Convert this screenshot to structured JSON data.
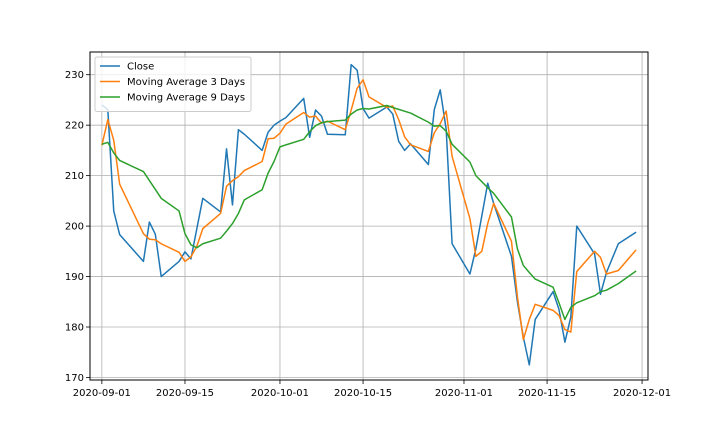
{
  "chart_data": {
    "type": "line",
    "title": "",
    "xlabel": "",
    "ylabel": "",
    "x_type": "date",
    "xlim": [
      "2020-08-30",
      "2020-12-02"
    ],
    "ylim": [
      169.5,
      234.5
    ],
    "grid": true,
    "legend_position": "top-left",
    "x_ticks": [
      "2020-09-01",
      "2020-09-15",
      "2020-10-01",
      "2020-10-15",
      "2020-11-01",
      "2020-11-15",
      "2020-12-01"
    ],
    "y_ticks": [
      170,
      180,
      190,
      200,
      210,
      220,
      230
    ],
    "series": [
      {
        "name": "Close",
        "color": "#1f77b4",
        "points": [
          [
            "2020-09-01",
            224.0
          ],
          [
            "2020-09-02",
            223.1
          ],
          [
            "2020-09-03",
            203.0
          ],
          [
            "2020-09-04",
            198.3
          ],
          [
            "2020-09-08",
            193.0
          ],
          [
            "2020-09-09",
            200.8
          ],
          [
            "2020-09-10",
            198.4
          ],
          [
            "2020-09-11",
            190.0
          ],
          [
            "2020-09-14",
            193.0
          ],
          [
            "2020-09-15",
            194.9
          ],
          [
            "2020-09-16",
            193.5
          ],
          [
            "2020-09-17",
            199.5
          ],
          [
            "2020-09-18",
            205.5
          ],
          [
            "2020-09-21",
            202.8
          ],
          [
            "2020-09-22",
            215.3
          ],
          [
            "2020-09-23",
            204.2
          ],
          [
            "2020-09-24",
            219.1
          ],
          [
            "2020-09-25",
            218.2
          ],
          [
            "2020-09-28",
            215.0
          ],
          [
            "2020-09-29",
            218.6
          ],
          [
            "2020-09-30",
            220.0
          ],
          [
            "2020-10-01",
            220.8
          ],
          [
            "2020-10-02",
            221.5
          ],
          [
            "2020-10-05",
            225.3
          ],
          [
            "2020-10-06",
            217.6
          ],
          [
            "2020-10-07",
            223.0
          ],
          [
            "2020-10-08",
            221.8
          ],
          [
            "2020-10-09",
            218.2
          ],
          [
            "2020-10-12",
            218.1
          ],
          [
            "2020-10-13",
            232.0
          ],
          [
            "2020-10-14",
            230.9
          ],
          [
            "2020-10-15",
            223.3
          ],
          [
            "2020-10-16",
            221.4
          ],
          [
            "2020-10-19",
            223.6
          ],
          [
            "2020-10-20",
            222.2
          ],
          [
            "2020-10-21",
            216.8
          ],
          [
            "2020-10-22",
            215.0
          ],
          [
            "2020-10-23",
            216.3
          ],
          [
            "2020-10-26",
            212.2
          ],
          [
            "2020-10-27",
            223.1
          ],
          [
            "2020-10-28",
            227.0
          ],
          [
            "2020-10-29",
            219.2
          ],
          [
            "2020-10-30",
            196.5
          ],
          [
            "2020-11-02",
            190.5
          ],
          [
            "2020-11-03",
            195.5
          ],
          [
            "2020-11-04",
            202.0
          ],
          [
            "2020-11-05",
            208.5
          ],
          [
            "2020-11-06",
            204.5
          ],
          [
            "2020-11-09",
            194.0
          ],
          [
            "2020-11-10",
            185.0
          ],
          [
            "2020-11-11",
            178.0
          ],
          [
            "2020-11-12",
            172.5
          ],
          [
            "2020-11-13",
            181.5
          ],
          [
            "2020-11-16",
            187.0
          ],
          [
            "2020-11-17",
            183.5
          ],
          [
            "2020-11-18",
            177.0
          ],
          [
            "2020-11-19",
            182.0
          ],
          [
            "2020-11-20",
            200.0
          ],
          [
            "2020-11-23",
            194.5
          ],
          [
            "2020-11-24",
            186.5
          ],
          [
            "2020-11-25",
            190.8
          ],
          [
            "2020-11-27",
            196.5
          ],
          [
            "2020-11-30",
            198.8
          ]
        ]
      },
      {
        "name": "Moving Average 3 Days",
        "color": "#ff7f0e",
        "points": [
          [
            "2020-09-01",
            216.0
          ],
          [
            "2020-09-02",
            221.1
          ],
          [
            "2020-09-03",
            217.0
          ],
          [
            "2020-09-04",
            208.3
          ],
          [
            "2020-09-08",
            198.5
          ],
          [
            "2020-09-09",
            197.4
          ],
          [
            "2020-09-10",
            197.3
          ],
          [
            "2020-09-11",
            196.5
          ],
          [
            "2020-09-14",
            194.8
          ],
          [
            "2020-09-15",
            193.0
          ],
          [
            "2020-09-16",
            193.9
          ],
          [
            "2020-09-17",
            196.0
          ],
          [
            "2020-09-18",
            199.5
          ],
          [
            "2020-09-21",
            202.5
          ],
          [
            "2020-09-22",
            207.9
          ],
          [
            "2020-09-23",
            209.0
          ],
          [
            "2020-09-24",
            209.8
          ],
          [
            "2020-09-25",
            211.0
          ],
          [
            "2020-09-28",
            212.8
          ],
          [
            "2020-09-29",
            217.3
          ],
          [
            "2020-09-30",
            217.4
          ],
          [
            "2020-10-01",
            218.4
          ],
          [
            "2020-10-02",
            220.2
          ],
          [
            "2020-10-05",
            222.5
          ],
          [
            "2020-10-06",
            221.6
          ],
          [
            "2020-10-07",
            221.8
          ],
          [
            "2020-10-08",
            220.4
          ],
          [
            "2020-10-09",
            220.8
          ],
          [
            "2020-10-12",
            219.1
          ],
          [
            "2020-10-13",
            223.0
          ],
          [
            "2020-10-14",
            227.3
          ],
          [
            "2020-10-15",
            229.0
          ],
          [
            "2020-10-16",
            225.6
          ],
          [
            "2020-10-19",
            223.5
          ],
          [
            "2020-10-20",
            223.8
          ],
          [
            "2020-10-21",
            221.1
          ],
          [
            "2020-10-22",
            217.7
          ],
          [
            "2020-10-23",
            216.1
          ],
          [
            "2020-10-26",
            214.8
          ],
          [
            "2020-10-27",
            218.5
          ],
          [
            "2020-10-28",
            220.3
          ],
          [
            "2020-10-29",
            222.8
          ],
          [
            "2020-10-30",
            213.8
          ],
          [
            "2020-11-02",
            201.5
          ],
          [
            "2020-11-03",
            194.0
          ],
          [
            "2020-11-04",
            195.0
          ],
          [
            "2020-11-05",
            200.5
          ],
          [
            "2020-11-06",
            204.5
          ],
          [
            "2020-11-09",
            197.0
          ],
          [
            "2020-11-10",
            186.0
          ],
          [
            "2020-11-11",
            177.5
          ],
          [
            "2020-11-12",
            181.5
          ],
          [
            "2020-11-13",
            184.5
          ],
          [
            "2020-11-16",
            183.3
          ],
          [
            "2020-11-17",
            182.3
          ],
          [
            "2020-11-18",
            179.5
          ],
          [
            "2020-11-19",
            179.0
          ],
          [
            "2020-11-20",
            191.0
          ],
          [
            "2020-11-23",
            195.0
          ],
          [
            "2020-11-24",
            193.8
          ],
          [
            "2020-11-25",
            190.5
          ],
          [
            "2020-11-27",
            191.2
          ],
          [
            "2020-11-30",
            195.3
          ]
        ]
      },
      {
        "name": "Moving Average 9 Days",
        "color": "#2ca02c",
        "points": [
          [
            "2020-09-01",
            216.2
          ],
          [
            "2020-09-02",
            216.6
          ],
          [
            "2020-09-03",
            214.5
          ],
          [
            "2020-09-04",
            213.0
          ],
          [
            "2020-09-08",
            210.8
          ],
          [
            "2020-09-11",
            205.5
          ],
          [
            "2020-09-14",
            203.0
          ],
          [
            "2020-09-15",
            198.5
          ],
          [
            "2020-09-16",
            196.3
          ],
          [
            "2020-09-17",
            195.7
          ],
          [
            "2020-09-18",
            196.5
          ],
          [
            "2020-09-21",
            197.6
          ],
          [
            "2020-09-22",
            199.0
          ],
          [
            "2020-09-23",
            200.5
          ],
          [
            "2020-09-24",
            202.5
          ],
          [
            "2020-09-25",
            205.2
          ],
          [
            "2020-09-28",
            207.2
          ],
          [
            "2020-09-29",
            210.5
          ],
          [
            "2020-09-30",
            212.8
          ],
          [
            "2020-10-01",
            215.7
          ],
          [
            "2020-10-02",
            216.1
          ],
          [
            "2020-10-05",
            217.2
          ],
          [
            "2020-10-06",
            218.7
          ],
          [
            "2020-10-07",
            219.9
          ],
          [
            "2020-10-08",
            220.5
          ],
          [
            "2020-10-09",
            220.7
          ],
          [
            "2020-10-12",
            221.0
          ],
          [
            "2020-10-13",
            222.2
          ],
          [
            "2020-10-14",
            223.0
          ],
          [
            "2020-10-15",
            223.3
          ],
          [
            "2020-10-16",
            223.2
          ],
          [
            "2020-10-19",
            223.9
          ],
          [
            "2020-10-20",
            223.5
          ],
          [
            "2020-10-23",
            222.4
          ],
          [
            "2020-10-26",
            220.6
          ],
          [
            "2020-10-27",
            219.8
          ],
          [
            "2020-10-28",
            219.9
          ],
          [
            "2020-10-29",
            218.8
          ],
          [
            "2020-10-30",
            216.2
          ],
          [
            "2020-11-02",
            212.7
          ],
          [
            "2020-11-03",
            210.0
          ],
          [
            "2020-11-04",
            208.8
          ],
          [
            "2020-11-05",
            207.6
          ],
          [
            "2020-11-06",
            206.5
          ],
          [
            "2020-11-09",
            201.8
          ],
          [
            "2020-11-10",
            195.5
          ],
          [
            "2020-11-11",
            192.2
          ],
          [
            "2020-11-12",
            190.8
          ],
          [
            "2020-11-13",
            189.5
          ],
          [
            "2020-11-16",
            187.9
          ],
          [
            "2020-11-17",
            184.8
          ],
          [
            "2020-11-18",
            181.5
          ],
          [
            "2020-11-19",
            183.9
          ],
          [
            "2020-11-20",
            184.8
          ],
          [
            "2020-11-23",
            186.2
          ],
          [
            "2020-11-24",
            187.0
          ],
          [
            "2020-11-25",
            187.3
          ],
          [
            "2020-11-27",
            188.6
          ],
          [
            "2020-11-30",
            191.1
          ]
        ]
      }
    ]
  }
}
